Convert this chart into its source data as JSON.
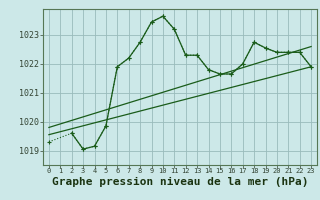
{
  "background_color": "#cce8e8",
  "grid_color": "#99bbbb",
  "line_color": "#1a5c1a",
  "xlabel": "Graphe pression niveau de la mer (hPa)",
  "xlabel_fontsize": 8,
  "ylabel_values": [
    1019,
    1020,
    1021,
    1022,
    1023
  ],
  "xlim": [
    -0.5,
    23.5
  ],
  "ylim": [
    1018.5,
    1023.9
  ],
  "xticks": [
    0,
    1,
    2,
    3,
    4,
    5,
    6,
    7,
    8,
    9,
    10,
    11,
    12,
    13,
    14,
    15,
    16,
    17,
    18,
    19,
    20,
    21,
    22,
    23
  ],
  "series1_dotted": {
    "x": [
      0,
      2,
      3,
      4,
      5,
      6,
      7,
      8,
      9,
      10,
      11,
      12,
      13,
      14,
      15,
      16,
      17,
      18,
      19,
      20,
      21,
      22,
      23
    ],
    "y": [
      1019.3,
      1019.6,
      1019.05,
      1019.15,
      1019.85,
      1021.9,
      1022.2,
      1022.75,
      1023.45,
      1023.65,
      1023.2,
      1022.3,
      1022.3,
      1021.8,
      1021.65,
      1021.65,
      1022.0,
      1022.75,
      1022.55,
      1022.4,
      1022.4,
      1022.4,
      1021.9
    ]
  },
  "series2_solid": {
    "x": [
      2,
      3,
      4,
      5,
      6,
      7,
      8,
      9,
      10,
      11,
      12,
      13,
      14,
      15,
      16,
      17,
      18,
      19,
      20,
      21,
      22,
      23
    ],
    "y": [
      1019.6,
      1019.05,
      1019.15,
      1019.85,
      1021.9,
      1022.2,
      1022.75,
      1023.45,
      1023.65,
      1023.2,
      1022.3,
      1022.3,
      1021.8,
      1021.65,
      1021.65,
      1022.0,
      1022.75,
      1022.55,
      1022.4,
      1022.4,
      1022.4,
      1021.9
    ]
  },
  "trend_upper": {
    "x": [
      0,
      23
    ],
    "y": [
      1019.8,
      1022.6
    ]
  },
  "trend_lower": {
    "x": [
      0,
      23
    ],
    "y": [
      1019.55,
      1021.9
    ]
  }
}
